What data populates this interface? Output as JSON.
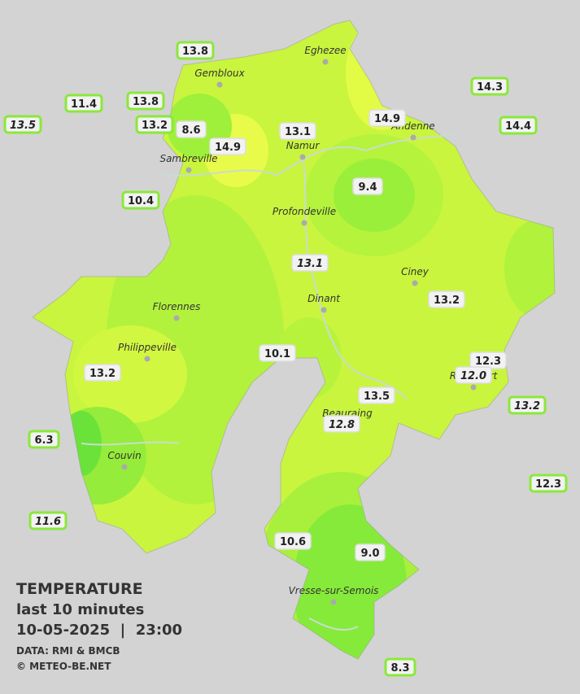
{
  "legend": {
    "title": "TEMPERATURE",
    "period": "last 10 minutes",
    "datetime": "10-05-2025  |  23:00",
    "source": "DATA: RMI & BMCB",
    "credit": "© METEO-BE.NET"
  },
  "cities": [
    "Eghezee",
    "Gembloux",
    "Andenne",
    "Namur",
    "Sambreville",
    "Profondeville",
    "Ciney",
    "Dinant",
    "Florennes",
    "Philippeville",
    "Rochefort",
    "Beauraing",
    "Couvin",
    "Vresse-sur-Semois"
  ],
  "stations": [
    {
      "value": "13.8",
      "outside": true,
      "italic": false
    },
    {
      "value": "11.4",
      "outside": true,
      "italic": false
    },
    {
      "value": "13.8",
      "outside": true,
      "italic": false
    },
    {
      "value": "13.5",
      "outside": true,
      "italic": true
    },
    {
      "value": "13.2",
      "outside": true,
      "italic": false
    },
    {
      "value": "8.6",
      "outside": false,
      "italic": false
    },
    {
      "value": "14.9",
      "outside": false,
      "italic": false
    },
    {
      "value": "13.1",
      "outside": false,
      "italic": false
    },
    {
      "value": "14.9",
      "outside": false,
      "italic": false
    },
    {
      "value": "14.3",
      "outside": true,
      "italic": false
    },
    {
      "value": "14.4",
      "outside": true,
      "italic": false
    },
    {
      "value": "10.4",
      "outside": true,
      "italic": false
    },
    {
      "value": "9.4",
      "outside": false,
      "italic": false
    },
    {
      "value": "13.1",
      "outside": false,
      "italic": true
    },
    {
      "value": "13.2",
      "outside": false,
      "italic": false
    },
    {
      "value": "10.1",
      "outside": false,
      "italic": false
    },
    {
      "value": "13.2",
      "outside": false,
      "italic": false
    },
    {
      "value": "12.3",
      "outside": false,
      "italic": false
    },
    {
      "value": "12.0",
      "outside": false,
      "italic": true
    },
    {
      "value": "13.2",
      "outside": true,
      "italic": true
    },
    {
      "value": "13.5",
      "outside": false,
      "italic": false
    },
    {
      "value": "12.8",
      "outside": false,
      "italic": true
    },
    {
      "value": "6.3",
      "outside": true,
      "italic": false
    },
    {
      "value": "12.3",
      "outside": true,
      "italic": false
    },
    {
      "value": "11.6",
      "outside": true,
      "italic": true
    },
    {
      "value": "10.6",
      "outside": false,
      "italic": false
    },
    {
      "value": "9.0",
      "outside": false,
      "italic": false
    },
    {
      "value": "8.3",
      "outside": true,
      "italic": false
    }
  ]
}
